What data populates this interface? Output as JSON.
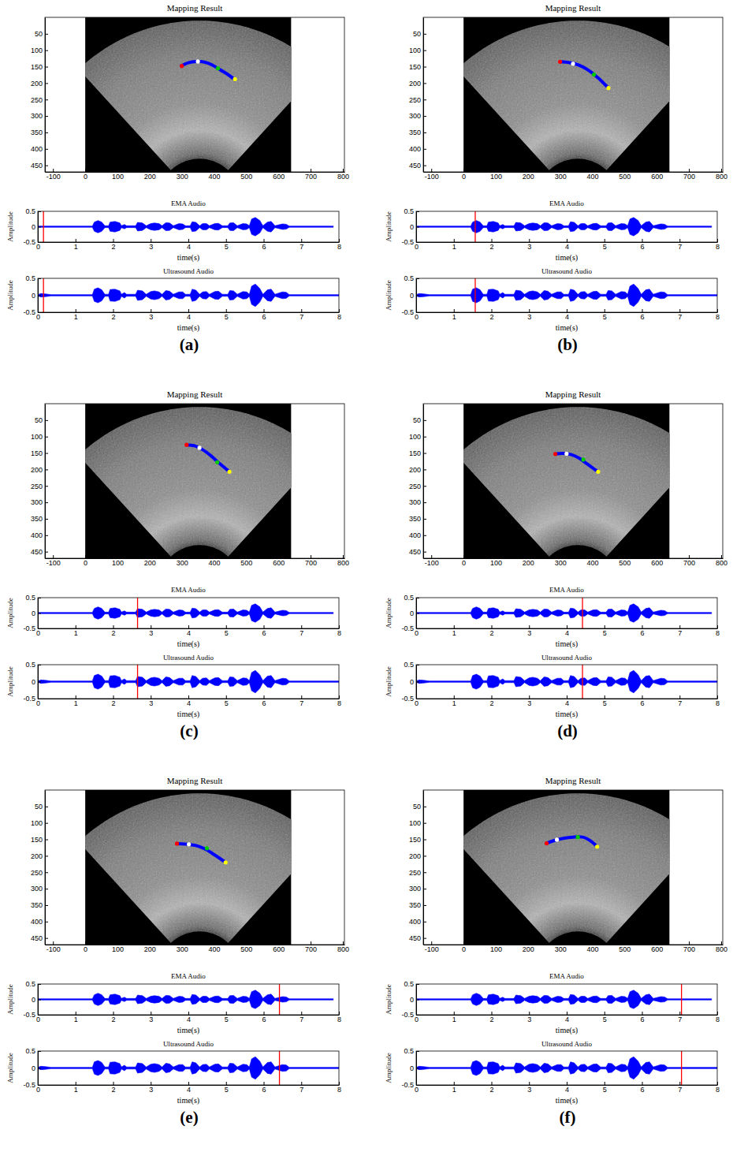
{
  "chart_data": {
    "type": "composite",
    "image": {
      "type": "image",
      "title": "Mapping Result",
      "xlim": [
        -125,
        805
      ],
      "ylim": [
        0,
        470
      ],
      "xticks": [
        -100,
        0,
        100,
        200,
        300,
        400,
        500,
        600,
        700,
        800
      ],
      "yticks": [
        50,
        100,
        150,
        200,
        250,
        300,
        350,
        400,
        450
      ]
    },
    "audio": [
      {
        "type": "area",
        "title": "EMA Audio",
        "xlabel": "time(s)",
        "ylabel": "Amplitude",
        "xlim": [
          0,
          8
        ],
        "ylim": [
          -0.5,
          0.5
        ],
        "xticks": [
          0,
          1,
          2,
          3,
          4,
          5,
          6,
          7,
          8
        ],
        "yticks": [
          -0.5,
          0,
          0.5
        ],
        "color": "#0000ff",
        "x": [
          0,
          1.45,
          1.5,
          1.6,
          1.7,
          1.78,
          1.88,
          1.92,
          2.05,
          2.18,
          2.22,
          2.3,
          2.36,
          2.6,
          2.65,
          2.78,
          2.88,
          3.0,
          3.1,
          3.22,
          3.3,
          3.4,
          3.5,
          3.6,
          3.75,
          3.85,
          3.92,
          4.05,
          4.1,
          4.2,
          4.3,
          4.38,
          4.48,
          4.56,
          4.7,
          4.8,
          4.9,
          5.05,
          5.1,
          5.2,
          5.3,
          5.45,
          5.55,
          5.62,
          5.68,
          5.78,
          5.9,
          5.98,
          6.1,
          6.2,
          6.3,
          6.5,
          6.6,
          6.68,
          7.85
        ],
        "values": [
          0.02,
          0.02,
          0.15,
          0.2,
          0.15,
          0.03,
          0.03,
          0.15,
          0.17,
          0.12,
          0.03,
          0.07,
          0.03,
          0.03,
          0.14,
          0.12,
          0.03,
          0.1,
          0.12,
          0.1,
          0.03,
          0.13,
          0.12,
          0.03,
          0.1,
          0.09,
          0.03,
          0.03,
          0.16,
          0.14,
          0.03,
          0.1,
          0.1,
          0.03,
          0.1,
          0.11,
          0.03,
          0.03,
          0.12,
          0.13,
          0.03,
          0.1,
          0.09,
          0.03,
          0.25,
          0.3,
          0.2,
          0.03,
          0.15,
          0.17,
          0.03,
          0.09,
          0.08,
          0.02,
          0.02
        ]
      },
      {
        "type": "area",
        "title": "Ultrasound Audio",
        "xlabel": "time(s)",
        "ylabel": "Amplitude",
        "xlim": [
          0,
          8
        ],
        "ylim": [
          -0.5,
          0.5
        ],
        "xticks": [
          0,
          1,
          2,
          3,
          4,
          5,
          6,
          7,
          8
        ],
        "yticks": [
          -0.5,
          0,
          0.5
        ],
        "color": "#0000ff",
        "x": [
          0,
          0.08,
          0.2,
          0.35,
          1.45,
          1.5,
          1.6,
          1.7,
          1.78,
          1.88,
          1.92,
          2.05,
          2.18,
          2.22,
          2.3,
          2.36,
          2.6,
          2.65,
          2.78,
          2.88,
          3.0,
          3.1,
          3.22,
          3.3,
          3.4,
          3.5,
          3.6,
          3.75,
          3.85,
          3.92,
          4.05,
          4.1,
          4.2,
          4.3,
          4.38,
          4.48,
          4.56,
          4.7,
          4.8,
          4.9,
          5.05,
          5.1,
          5.2,
          5.3,
          5.45,
          5.55,
          5.62,
          5.68,
          5.78,
          5.9,
          5.98,
          6.1,
          6.2,
          6.3,
          6.5,
          6.6,
          6.68,
          8
        ],
        "values": [
          0.02,
          0.05,
          0.04,
          0.02,
          0.02,
          0.18,
          0.22,
          0.16,
          0.03,
          0.03,
          0.17,
          0.18,
          0.13,
          0.03,
          0.08,
          0.03,
          0.03,
          0.15,
          0.13,
          0.03,
          0.11,
          0.13,
          0.1,
          0.03,
          0.14,
          0.12,
          0.03,
          0.1,
          0.1,
          0.03,
          0.03,
          0.18,
          0.15,
          0.03,
          0.1,
          0.11,
          0.03,
          0.11,
          0.12,
          0.03,
          0.03,
          0.14,
          0.13,
          0.03,
          0.11,
          0.1,
          0.03,
          0.27,
          0.33,
          0.2,
          0.03,
          0.16,
          0.18,
          0.03,
          0.1,
          0.09,
          0.02,
          0.02
        ]
      }
    ],
    "panels": [
      {
        "label": "(a)",
        "time": 0.15,
        "contour": {
          "color": "#0000ff",
          "x": [
            298,
            320,
            345,
            370,
            395,
            420,
            445,
            465
          ],
          "y": [
            148,
            138,
            134,
            136,
            145,
            160,
            175,
            190
          ]
        },
        "points": {
          "x": [
            300,
            350,
            412,
            465
          ],
          "y": [
            148,
            134,
            155,
            188
          ],
          "colors": [
            "#ff0000",
            "#ffffff",
            "#00cc00",
            "#ffff00"
          ]
        }
      },
      {
        "label": "(b)",
        "time": 1.57,
        "contour": {
          "color": "#0000ff",
          "x": [
            300,
            330,
            360,
            390,
            420,
            450
          ],
          "y": [
            135,
            138,
            146,
            162,
            186,
            215
          ]
        },
        "points": {
          "x": [
            300,
            340,
            405,
            450
          ],
          "y": [
            135,
            141,
            174,
            215
          ],
          "colors": [
            "#ff0000",
            "#ffffff",
            "#00cc00",
            "#ffff00"
          ]
        }
      },
      {
        "label": "(c)",
        "time": 2.65,
        "contour": {
          "color": "#0000ff",
          "x": [
            315,
            340,
            365,
            390,
            415,
            448
          ],
          "y": [
            125,
            128,
            140,
            158,
            180,
            207
          ]
        },
        "points": {
          "x": [
            315,
            355,
            410,
            448
          ],
          "y": [
            125,
            134,
            178,
            207
          ],
          "colors": [
            "#ff0000",
            "#ffffff",
            "#00cc00",
            "#ffff00"
          ]
        }
      },
      {
        "label": "(d)",
        "time": 4.42,
        "contour": {
          "color": "#0000ff",
          "x": [
            285,
            310,
            335,
            360,
            385,
            418
          ],
          "y": [
            153,
            151,
            155,
            166,
            184,
            207
          ]
        },
        "points": {
          "x": [
            285,
            320,
            372,
            418
          ],
          "y": [
            153,
            152,
            170,
            207
          ],
          "colors": [
            "#ff0000",
            "#ffffff",
            "#00cc00",
            "#ffff00"
          ]
        }
      },
      {
        "label": "(e)",
        "time": 6.42,
        "contour": {
          "color": "#0000ff",
          "x": [
            285,
            310,
            340,
            370,
            400,
            436
          ],
          "y": [
            163,
            164,
            168,
            178,
            196,
            220
          ]
        },
        "points": {
          "x": [
            285,
            322,
            378,
            436
          ],
          "y": [
            163,
            165,
            177,
            220
          ],
          "colors": [
            "#ff0000",
            "#ffffff",
            "#00cc00",
            "#ffff00"
          ]
        }
      },
      {
        "label": "(f)",
        "time": 7.05,
        "contour": {
          "color": "#0000ff",
          "x": [
            258,
            280,
            310,
            340,
            370,
            395,
            415
          ],
          "y": [
            162,
            154,
            147,
            143,
            143,
            155,
            172
          ]
        },
        "points": {
          "x": [
            258,
            290,
            355,
            415
          ],
          "y": [
            162,
            151,
            143,
            172
          ],
          "colors": [
            "#ff0000",
            "#ffffff",
            "#00cc00",
            "#ffff00"
          ]
        }
      }
    ]
  }
}
